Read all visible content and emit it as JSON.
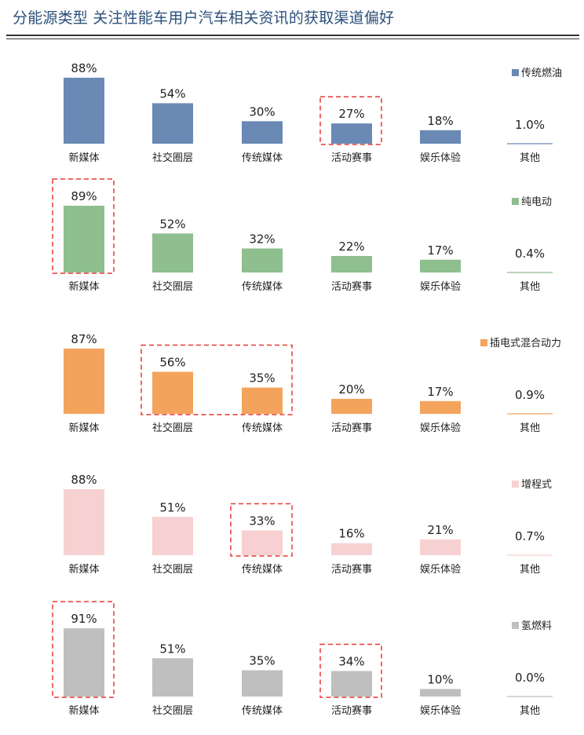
{
  "header": {
    "title": "分能源类型  关注性能车用户汽车相关资讯的获取渠道偏好"
  },
  "chart_data": [
    {
      "type": "bar",
      "series_name": "传统燃油",
      "color": "#6a89b4",
      "categories": [
        "新媒体",
        "社交圈层",
        "传统媒体",
        "活动赛事",
        "娱乐体验",
        "其他"
      ],
      "values": [
        88,
        54,
        30,
        27,
        18,
        1.0
      ],
      "labels": [
        "88%",
        "54%",
        "30%",
        "27%",
        "18%",
        "1.0%"
      ],
      "highlighted": [
        "活动赛事"
      ]
    },
    {
      "type": "bar",
      "series_name": "纯电动",
      "color": "#8fbe8f",
      "categories": [
        "新媒体",
        "社交圈层",
        "传统媒体",
        "活动赛事",
        "娱乐体验",
        "其他"
      ],
      "values": [
        89,
        52,
        32,
        22,
        17,
        0.4
      ],
      "labels": [
        "89%",
        "52%",
        "32%",
        "22%",
        "17%",
        "0.4%"
      ],
      "highlighted": [
        "新媒体"
      ]
    },
    {
      "type": "bar",
      "series_name": "插电式混合动力",
      "color": "#f3a35c",
      "categories": [
        "新媒体",
        "社交圈层",
        "传统媒体",
        "活动赛事",
        "娱乐体验",
        "其他"
      ],
      "values": [
        87,
        56,
        35,
        20,
        17,
        0.9
      ],
      "labels": [
        "87%",
        "56%",
        "35%",
        "20%",
        "17%",
        "0.9%"
      ],
      "highlighted": [
        "社交圈层",
        "传统媒体"
      ]
    },
    {
      "type": "bar",
      "series_name": "增程式",
      "color": "#f7d1d1",
      "categories": [
        "新媒体",
        "社交圈层",
        "传统媒体",
        "活动赛事",
        "娱乐体验",
        "其他"
      ],
      "values": [
        88,
        51,
        33,
        16,
        21,
        0.7
      ],
      "labels": [
        "88%",
        "51%",
        "33%",
        "16%",
        "21%",
        "0.7%"
      ],
      "highlighted": [
        "传统媒体"
      ]
    },
    {
      "type": "bar",
      "series_name": "氢燃料",
      "color": "#bfbfbf",
      "categories": [
        "新媒体",
        "社交圈层",
        "传统媒体",
        "活动赛事",
        "娱乐体验",
        "其他"
      ],
      "values": [
        91,
        51,
        35,
        34,
        10,
        0.0
      ],
      "labels": [
        "91%",
        "51%",
        "35%",
        "34%",
        "10%",
        "0.0%"
      ],
      "highlighted": [
        "新媒体",
        "活动赛事"
      ]
    }
  ],
  "highlight_color": "#e53935"
}
